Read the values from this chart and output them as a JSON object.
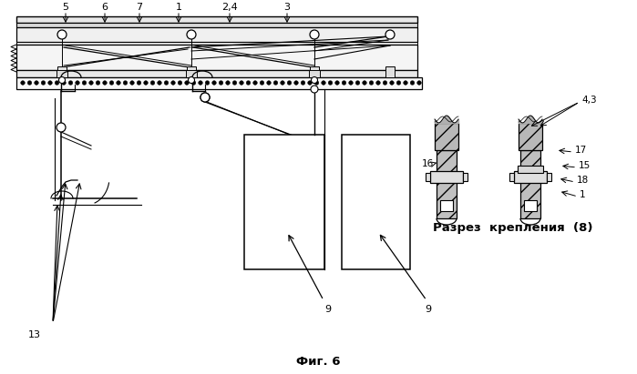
{
  "bg_color": "#ffffff",
  "fig_caption": "Фиг. 6",
  "section_label": "Разрез  крепления  (8)"
}
